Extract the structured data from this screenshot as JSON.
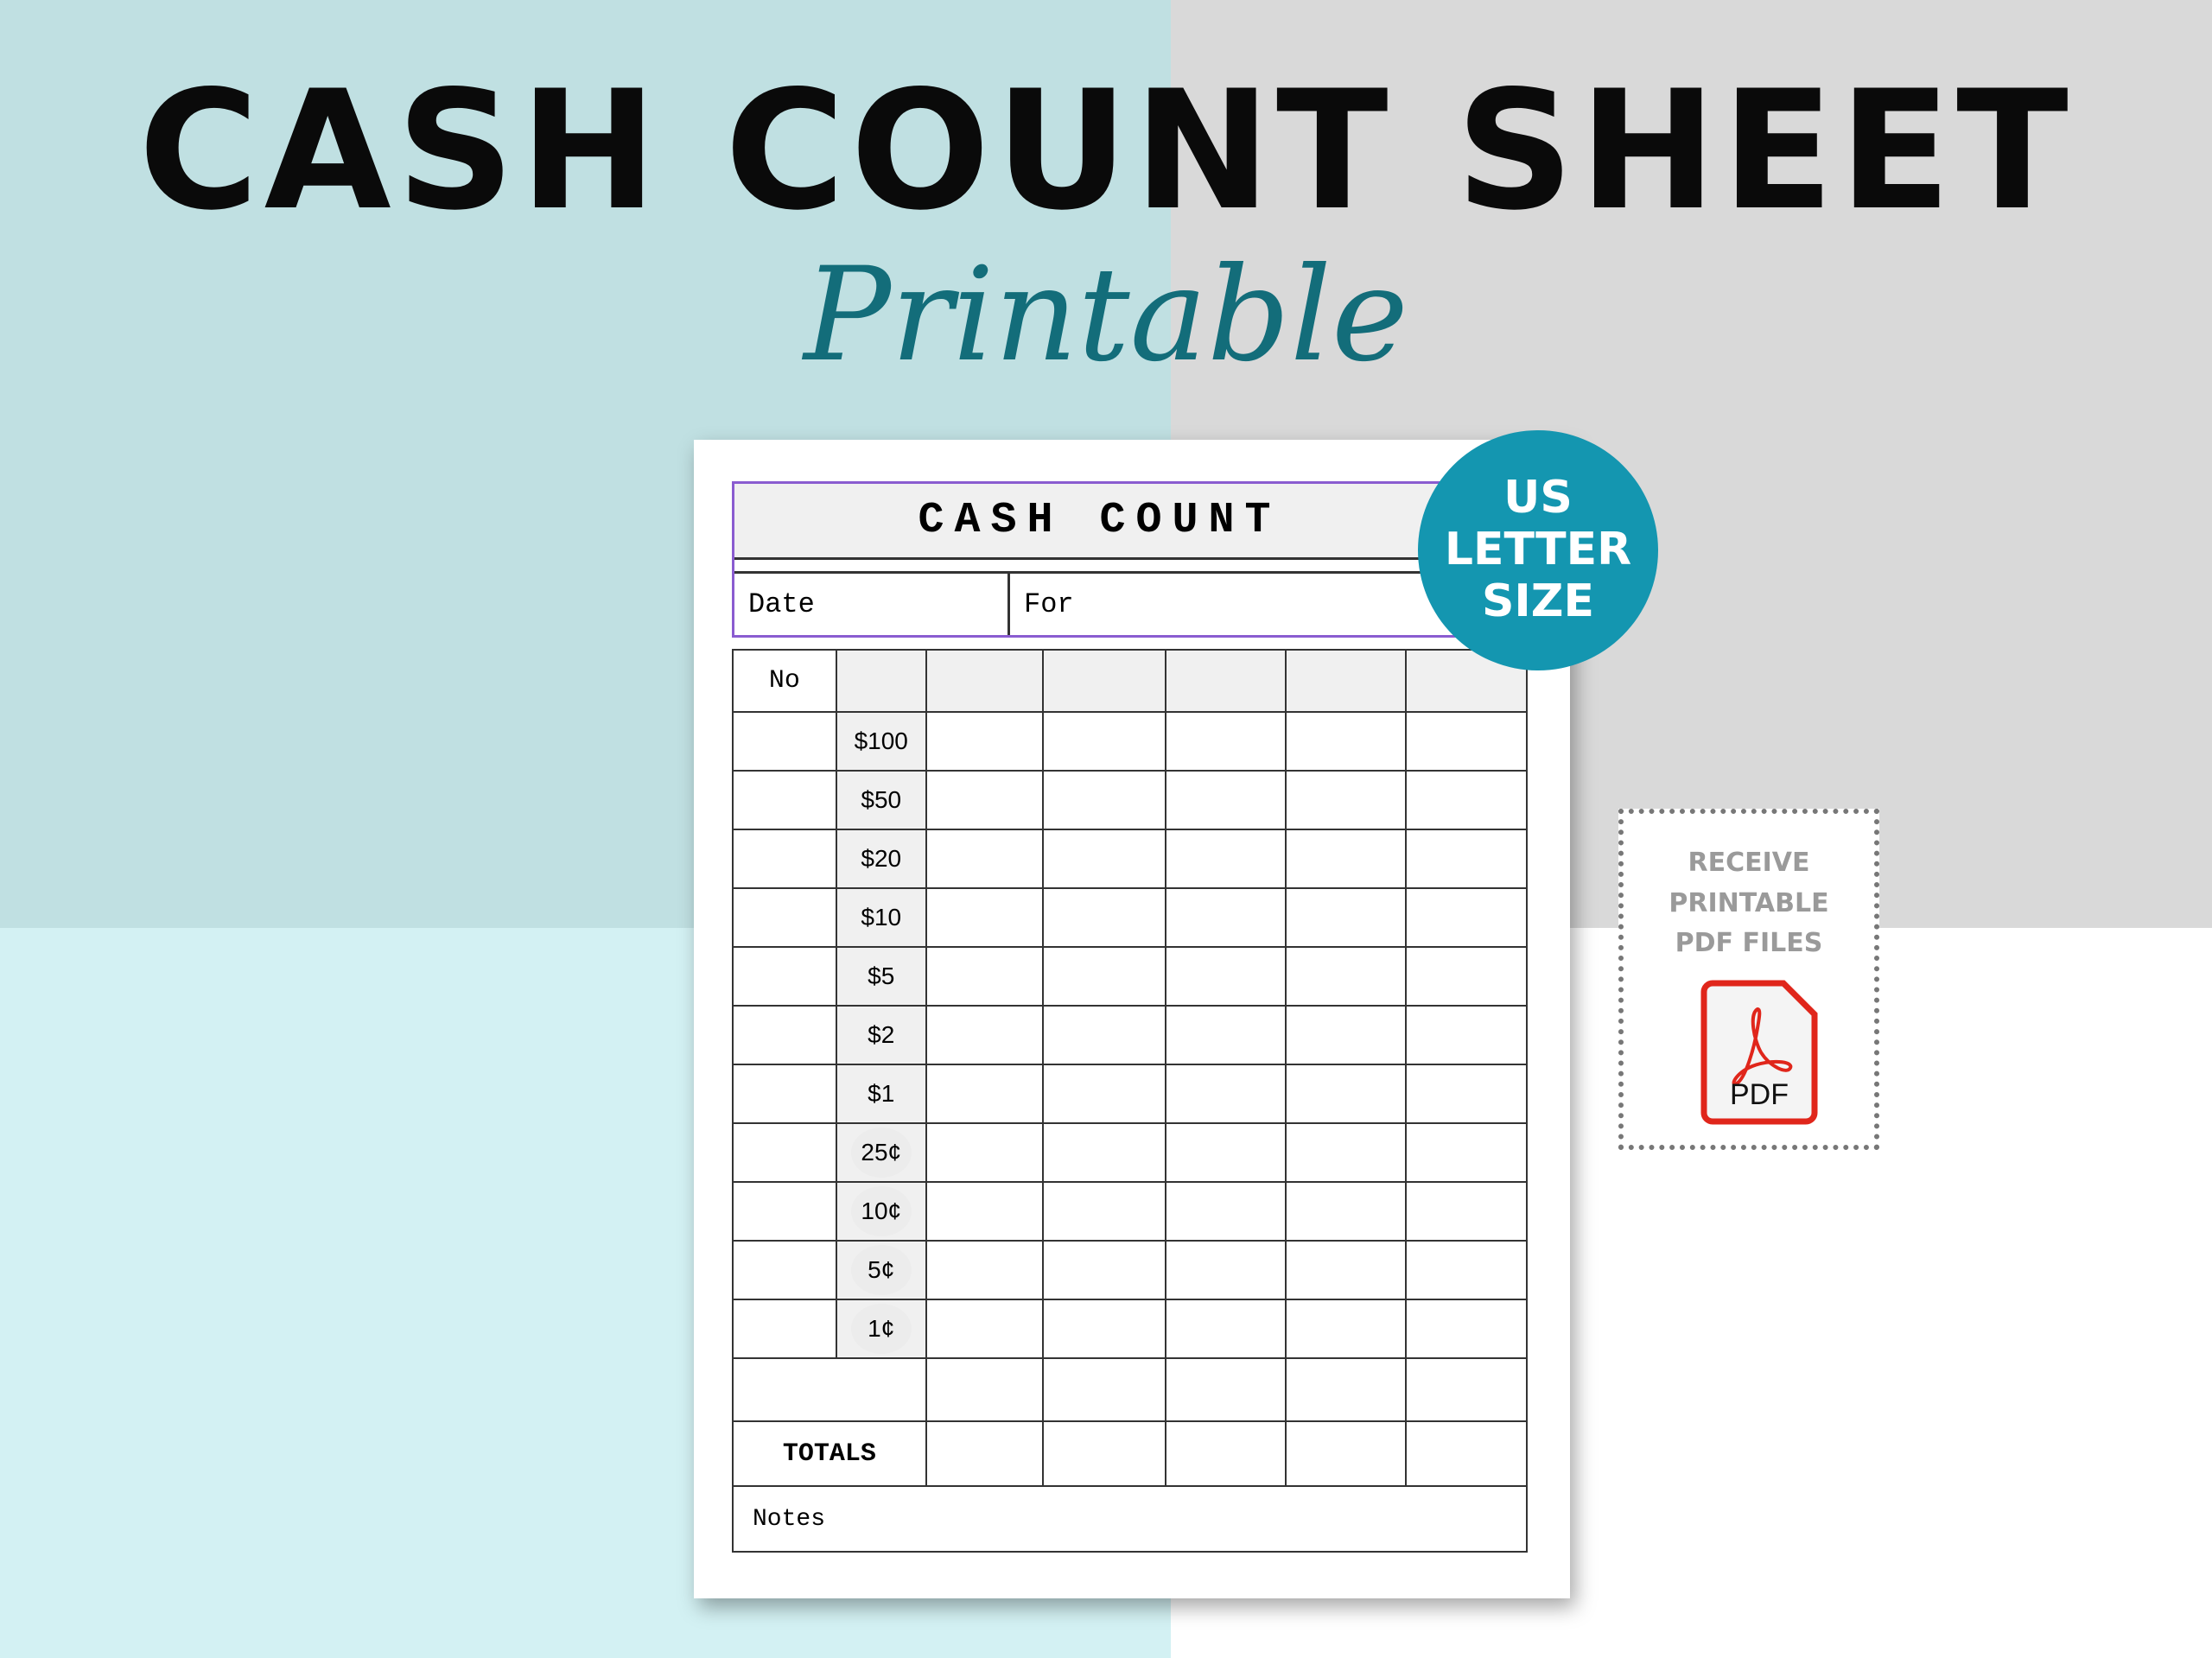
{
  "banner": {
    "title": "CASH COUNT SHEET",
    "subtitle": "Printable"
  },
  "colors": {
    "teal_bg": "#c0e0e2",
    "grey_bg": "#d9d9d9",
    "light_cyan_bg": "#d3f1f3",
    "badge": "#1496b0",
    "header_border": "#8a5cd0",
    "subtitle": "#136d7a",
    "pdf_red": "#e0261b"
  },
  "sheet": {
    "title": "CASH COUNT",
    "date_label": "Date",
    "for_label": "For",
    "no_label": "No",
    "denominations": [
      {
        "label": "$100",
        "coin": false
      },
      {
        "label": "$50",
        "coin": false
      },
      {
        "label": "$20",
        "coin": false
      },
      {
        "label": "$10",
        "coin": false
      },
      {
        "label": "$5",
        "coin": false
      },
      {
        "label": "$2",
        "coin": false
      },
      {
        "label": "$1",
        "coin": false
      },
      {
        "label": "25¢",
        "coin": true
      },
      {
        "label": "10¢",
        "coin": true
      },
      {
        "label": "5¢",
        "coin": true
      },
      {
        "label": "1¢",
        "coin": true
      }
    ],
    "totals_label": "TOTALS",
    "notes_label": "Notes"
  },
  "badge": {
    "lines": [
      "US",
      "LETTER",
      "SIZE"
    ]
  },
  "pdf_promo": {
    "lines": [
      "RECEIVE",
      "PRINTABLE",
      "PDF FILES"
    ],
    "icon": "pdf-file-icon",
    "icon_label": "PDF"
  }
}
